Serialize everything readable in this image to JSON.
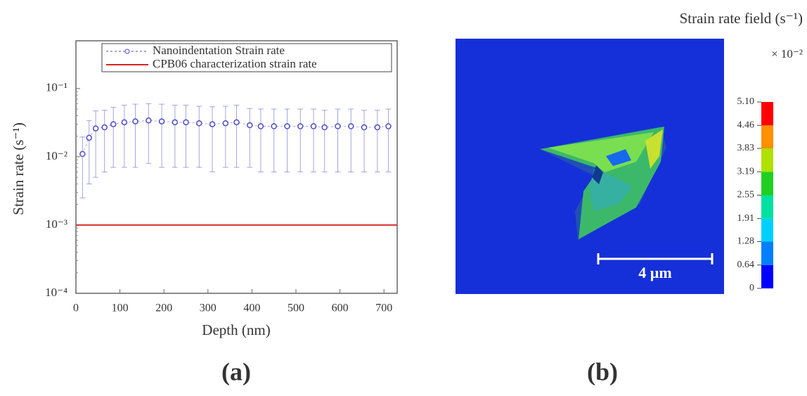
{
  "chart_data": [
    {
      "type": "scatter",
      "panel_label": "(a)",
      "x_label": "Depth (nm)",
      "y_label": "Strain rate (s⁻¹)",
      "log_y": true,
      "xlim": [
        0,
        730
      ],
      "ylim": [
        0.0001,
        0.5
      ],
      "xticks": [
        0,
        100,
        200,
        300,
        400,
        500,
        600,
        700
      ],
      "yticks": [
        {
          "value": 0.0001,
          "label": "10⁻⁴"
        },
        {
          "value": 0.001,
          "label": "10⁻³"
        },
        {
          "value": 0.01,
          "label": "10⁻²"
        },
        {
          "value": 0.1,
          "label": "10⁻¹"
        }
      ],
      "legend": "upper right",
      "series": [
        {
          "name": "Nanoindentation Strain rate",
          "color": "#4b4bc8",
          "x": [
            15,
            30,
            45,
            65,
            85,
            110,
            135,
            165,
            195,
            225,
            250,
            280,
            310,
            340,
            365,
            395,
            420,
            450,
            480,
            510,
            540,
            565,
            595,
            625,
            655,
            685,
            710
          ],
          "values": [
            0.011,
            0.019,
            0.026,
            0.027,
            0.03,
            0.032,
            0.033,
            0.034,
            0.033,
            0.032,
            0.032,
            0.031,
            0.03,
            0.031,
            0.032,
            0.029,
            0.028,
            0.028,
            0.028,
            0.028,
            0.028,
            0.027,
            0.028,
            0.028,
            0.027,
            0.027,
            0.028
          ],
          "errors": [
            0.0085,
            0.015,
            0.021,
            0.021,
            0.023,
            0.025,
            0.026,
            0.026,
            0.026,
            0.025,
            0.025,
            0.024,
            0.024,
            0.024,
            0.025,
            0.022,
            0.022,
            0.022,
            0.022,
            0.022,
            0.022,
            0.021,
            0.022,
            0.022,
            0.021,
            0.021,
            0.022
          ]
        },
        {
          "name": "CPB06 characterization strain rate",
          "color": "#d62728",
          "value": 0.001
        }
      ]
    },
    {
      "type": "heatmap-image",
      "panel_label": "(b)",
      "title": "Strain rate field (s⁻¹)",
      "multiplier": "× 10⁻²",
      "scale_bar": "4 µm",
      "colorbar_lim": [
        0,
        5.1
      ],
      "colorbar_ticks": [
        {
          "value": 0,
          "label": "0"
        },
        0.64,
        1.28,
        1.91,
        2.55,
        3.19,
        3.83,
        4.46,
        {
          "value": 5.1,
          "label": "5.10"
        }
      ],
      "colorbar_colors": [
        "#0000ff",
        "#0080ff",
        "#00d0ff",
        "#00e0a0",
        "#20d020",
        "#b0e000",
        "#ff9000",
        "#ff0000"
      ]
    }
  ]
}
